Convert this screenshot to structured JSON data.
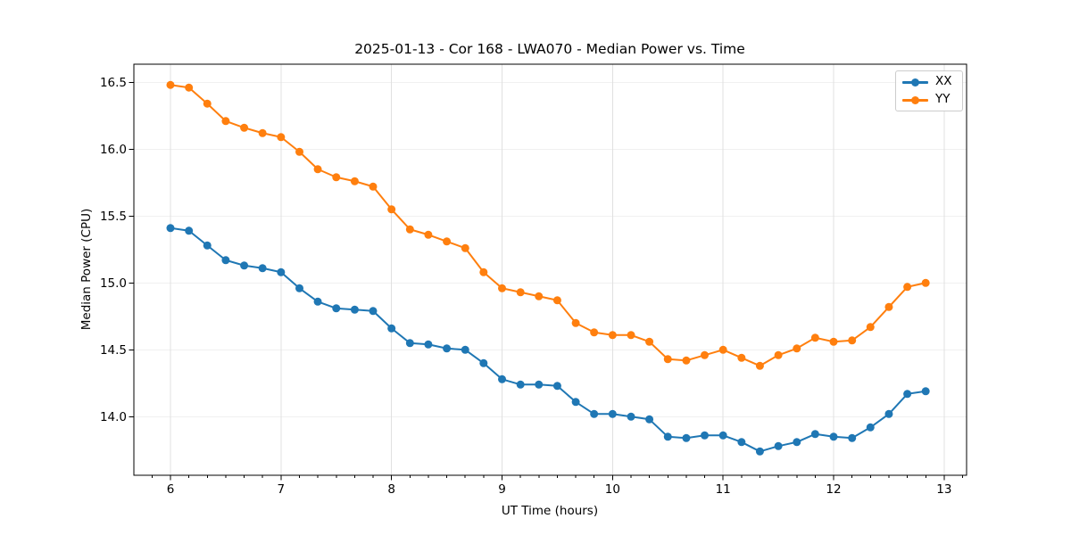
{
  "chart_data": {
    "type": "line",
    "title": "2025-01-13 - Cor 168 - LWA070 - Median Power vs. Time",
    "xlabel": "UT Time (hours)",
    "ylabel": "Median Power (CPU)",
    "xlim": [
      5.669,
      13.203
    ],
    "ylim": [
      13.562,
      16.635
    ],
    "x_ticks": [
      6,
      7,
      8,
      9,
      10,
      11,
      12,
      13
    ],
    "y_ticks": [
      14.0,
      14.5,
      15.0,
      15.5,
      16.0,
      16.5
    ],
    "x_minor_step": 0.16667,
    "grid": true,
    "legend_position": "upper right",
    "x": [
      6.0,
      6.167,
      6.333,
      6.5,
      6.667,
      6.833,
      7.0,
      7.167,
      7.333,
      7.5,
      7.667,
      7.833,
      8.0,
      8.167,
      8.333,
      8.5,
      8.667,
      8.833,
      9.0,
      9.167,
      9.333,
      9.5,
      9.667,
      9.833,
      10.0,
      10.167,
      10.333,
      10.5,
      10.667,
      10.833,
      11.0,
      11.167,
      11.333,
      11.5,
      11.667,
      11.833,
      12.0,
      12.167,
      12.333,
      12.5,
      12.667,
      12.833
    ],
    "series": [
      {
        "name": "XX",
        "color": "#1f77b4",
        "values": [
          15.41,
          15.39,
          15.28,
          15.17,
          15.13,
          15.11,
          15.08,
          14.96,
          14.86,
          14.81,
          14.8,
          14.79,
          14.66,
          14.55,
          14.54,
          14.51,
          14.5,
          14.4,
          14.28,
          14.24,
          14.24,
          14.23,
          14.11,
          14.02,
          14.02,
          14.0,
          13.98,
          13.85,
          13.84,
          13.86,
          13.86,
          13.81,
          13.74,
          13.78,
          13.81,
          13.87,
          13.85,
          13.84,
          13.92,
          14.02,
          14.17,
          14.19
        ]
      },
      {
        "name": "YY",
        "color": "#ff7f0e",
        "values": [
          16.48,
          16.46,
          16.34,
          16.21,
          16.16,
          16.12,
          16.09,
          15.98,
          15.85,
          15.79,
          15.76,
          15.72,
          15.55,
          15.4,
          15.36,
          15.31,
          15.26,
          15.08,
          14.96,
          14.93,
          14.9,
          14.87,
          14.7,
          14.63,
          14.61,
          14.61,
          14.56,
          14.43,
          14.42,
          14.46,
          14.5,
          14.44,
          14.38,
          14.46,
          14.51,
          14.59,
          14.56,
          14.57,
          14.67,
          14.82,
          14.97,
          15.0
        ]
      }
    ]
  },
  "style": {
    "grid_color": "#e0e0e0",
    "spine_color": "#000000",
    "tick_color": "#000000",
    "text_color": "#000000",
    "background": "#ffffff"
  }
}
